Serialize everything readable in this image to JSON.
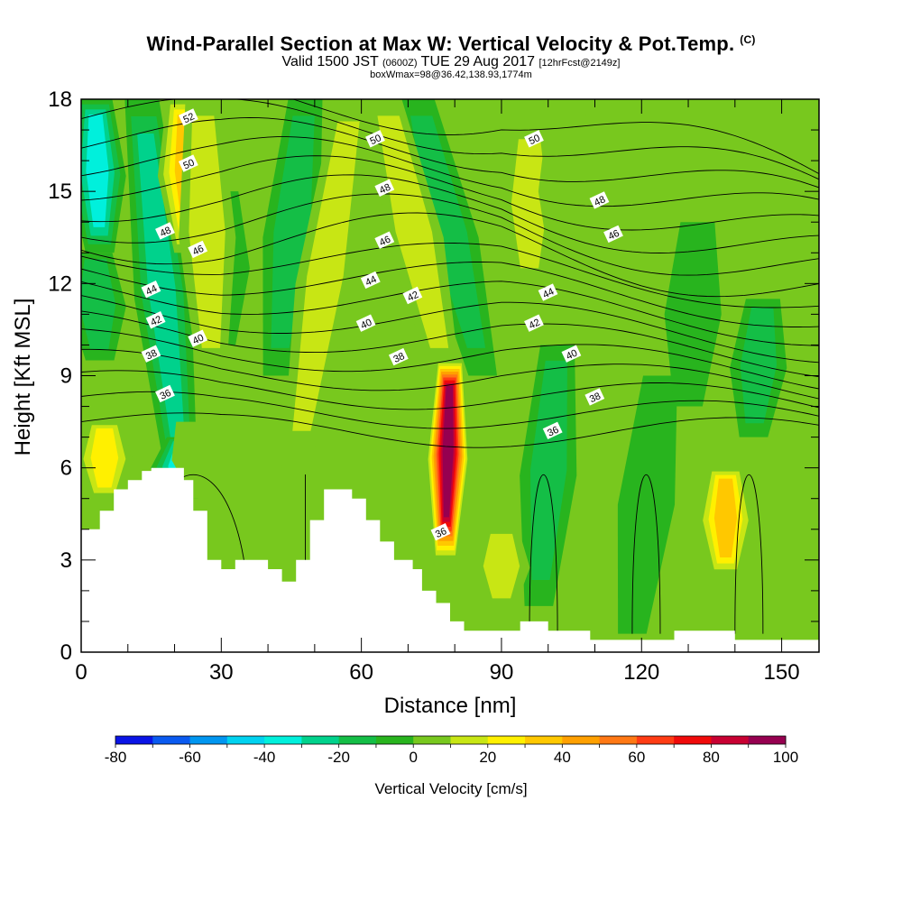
{
  "header": {
    "title": "Wind-Parallel Section at Max W: Vertical Velocity & Pot.Temp.",
    "title_suffix": "(C)",
    "valid_prefix": "Valid 1500 JST",
    "valid_utc": "(0600Z)",
    "valid_date": "TUE 29 Aug 2017",
    "forecast": "[12hrFcst@2149z]",
    "boxwmax": "boxWmax=98@36.42,138.93,1774m"
  },
  "chart_data": {
    "type": "heatmap",
    "title": "Wind-Parallel Section at Max W: Vertical Velocity & Pot.Temp.",
    "xlabel": "Distance [nm]",
    "ylabel": "Height [Kft MSL]",
    "xlim": [
      0,
      158
    ],
    "ylim": [
      0,
      18
    ],
    "x_ticks": [
      0,
      30,
      60,
      90,
      120,
      150
    ],
    "y_ticks": [
      0,
      3,
      6,
      9,
      12,
      15,
      18
    ],
    "grid": false,
    "colorbar": {
      "label": "Vertical Velocity [cm/s]",
      "ticks": [
        -80,
        -60,
        -40,
        -20,
        0,
        20,
        40,
        60,
        80,
        100
      ],
      "levels": [
        -80,
        -70,
        -60,
        -50,
        -40,
        -30,
        -20,
        -10,
        0,
        10,
        20,
        30,
        40,
        50,
        60,
        70,
        80,
        90,
        100
      ],
      "colors": [
        "#0a14e6",
        "#0a5af0",
        "#0096f0",
        "#00d2f0",
        "#00f0dc",
        "#00d28c",
        "#14be46",
        "#28b41e",
        "#78c81e",
        "#c8e614",
        "#fff000",
        "#ffc800",
        "#ffa000",
        "#ff7814",
        "#ff3c14",
        "#f00a0a",
        "#c80032",
        "#960050",
        "#5a0a82"
      ]
    },
    "terrain": {
      "x": [
        0,
        4,
        4,
        7,
        7,
        10,
        10,
        13,
        13,
        15,
        15,
        22,
        22,
        24,
        24,
        27,
        27,
        30,
        30,
        33,
        33,
        40,
        40,
        43,
        43,
        46,
        46,
        49,
        49,
        52,
        52,
        58,
        58,
        61,
        61,
        64,
        64,
        67,
        67,
        71,
        71,
        73,
        73,
        76,
        76,
        79,
        79,
        82,
        82,
        85,
        85,
        94,
        94,
        100,
        100,
        103,
        103,
        109,
        109,
        112,
        112,
        118,
        118,
        124,
        124,
        127,
        127,
        133,
        133,
        140,
        140,
        145,
        145,
        158
      ],
      "height": [
        4.0,
        4.0,
        4.6,
        4.6,
        5.3,
        5.3,
        5.6,
        5.6,
        5.9,
        5.9,
        6.0,
        6.0,
        5.6,
        5.6,
        4.6,
        4.6,
        3.0,
        3.0,
        2.7,
        2.7,
        3.0,
        3.0,
        2.7,
        2.7,
        2.3,
        2.3,
        3.0,
        3.0,
        4.3,
        4.3,
        5.3,
        5.3,
        5.0,
        5.0,
        4.3,
        4.3,
        3.6,
        3.6,
        3.0,
        3.0,
        2.7,
        2.7,
        2.0,
        2.0,
        1.6,
        1.6,
        1.0,
        1.0,
        0.7,
        0.7,
        0.7,
        0.7,
        1.0,
        1.0,
        0.7,
        0.7,
        0.7,
        0.7,
        0.4,
        0.4,
        0.4,
        0.4,
        0.4,
        0.4,
        0.4,
        0.4,
        0.7,
        0.7,
        0.7,
        0.7,
        0.4,
        0.4,
        0.4,
        0.4
      ]
    },
    "updraft_bands": [
      {
        "x_top": 22,
        "x_bottom": 23,
        "y_top": 18,
        "y_bottom": 13,
        "peak": 45
      },
      {
        "x_top": 26,
        "x_bottom": 28,
        "y_top": 18,
        "y_bottom": 9,
        "peak": 20
      },
      {
        "x_top": 58,
        "x_bottom": 46,
        "y_top": 18,
        "y_bottom": 6,
        "peak": 25
      },
      {
        "x_top": 65,
        "x_bottom": 78,
        "y_top": 18,
        "y_bottom": 9,
        "peak": 25
      },
      {
        "x_top": 79,
        "x_bottom": 78,
        "y_top": 9.5,
        "y_bottom": 3.0,
        "peak": 100
      },
      {
        "x_top": 96,
        "x_bottom": 96,
        "y_top": 17,
        "y_bottom": 12,
        "peak": 20
      },
      {
        "x_top": 104,
        "x_bottom": 104,
        "y_top": 18,
        "y_bottom": 12,
        "peak": 15
      },
      {
        "x_top": 138,
        "x_bottom": 138,
        "y_top": 6,
        "y_bottom": 2.5,
        "peak": 40
      },
      {
        "x_top": 90,
        "x_bottom": 90,
        "y_top": 4,
        "y_bottom": 1.5,
        "peak": 20
      },
      {
        "x_top": 24,
        "x_bottom": 27,
        "y_top": 7.5,
        "y_bottom": 5,
        "peak": 15
      },
      {
        "x_top": 5,
        "x_bottom": 5,
        "y_top": 7.5,
        "y_bottom": 5,
        "peak": 35
      }
    ],
    "downdraft_bands": [
      {
        "x_top": 3,
        "x_bottom": 4,
        "y_top": 18,
        "y_bottom": 13,
        "peak": -45
      },
      {
        "x_top": 3,
        "x_bottom": 4,
        "y_top": 13,
        "y_bottom": 9.5,
        "peak": -20
      },
      {
        "x_top": 13,
        "x_bottom": 22,
        "y_top": 18,
        "y_bottom": 5,
        "peak": -30
      },
      {
        "x_top": 22,
        "x_bottom": 20,
        "y_top": 7,
        "y_bottom": 5,
        "peak": -40
      },
      {
        "x_top": 48,
        "x_bottom": 42,
        "y_top": 18,
        "y_bottom": 9,
        "peak": -20
      },
      {
        "x_top": 72,
        "x_bottom": 86,
        "y_top": 18,
        "y_bottom": 9,
        "peak": -25
      },
      {
        "x_top": 102,
        "x_bottom": 98,
        "y_top": 10,
        "y_bottom": 1.5,
        "peak": -20
      },
      {
        "x_top": 124,
        "x_bottom": 118,
        "y_top": 9,
        "y_bottom": 0.6,
        "peak": -15
      },
      {
        "x_top": 132,
        "x_bottom": 130,
        "y_top": 14,
        "y_bottom": 8,
        "peak": -15
      },
      {
        "x_top": 146,
        "x_bottom": 144,
        "y_top": 11.5,
        "y_bottom": 7,
        "peak": -20
      },
      {
        "x_top": 30,
        "x_bottom": 30,
        "y_top": 15,
        "y_bottom": 10,
        "peak": -15
      }
    ],
    "theta_contours": {
      "levels": [
        35,
        36,
        37,
        38,
        39,
        40,
        41,
        42,
        43,
        44,
        45,
        46,
        47,
        48,
        49,
        50,
        51,
        52
      ],
      "labels": [
        {
          "text": "52",
          "x": 23,
          "y": 17.4
        },
        {
          "text": "50",
          "x": 23,
          "y": 15.9
        },
        {
          "text": "50",
          "x": 63,
          "y": 16.7
        },
        {
          "text": "50",
          "x": 97,
          "y": 16.7
        },
        {
          "text": "48",
          "x": 18,
          "y": 13.7
        },
        {
          "text": "48",
          "x": 65,
          "y": 15.1
        },
        {
          "text": "48",
          "x": 111,
          "y": 14.7
        },
        {
          "text": "46",
          "x": 25,
          "y": 13.1
        },
        {
          "text": "46",
          "x": 65,
          "y": 13.4
        },
        {
          "text": "46",
          "x": 114,
          "y": 13.6
        },
        {
          "text": "44",
          "x": 15,
          "y": 11.8
        },
        {
          "text": "44",
          "x": 62,
          "y": 12.1
        },
        {
          "text": "44",
          "x": 100,
          "y": 11.7
        },
        {
          "text": "42",
          "x": 16,
          "y": 10.8
        },
        {
          "text": "42",
          "x": 71,
          "y": 11.6
        },
        {
          "text": "42",
          "x": 97,
          "y": 10.7
        },
        {
          "text": "40",
          "x": 25,
          "y": 10.2
        },
        {
          "text": "40",
          "x": 61,
          "y": 10.7
        },
        {
          "text": "40",
          "x": 105,
          "y": 9.7
        },
        {
          "text": "38",
          "x": 15,
          "y": 9.7
        },
        {
          "text": "38",
          "x": 68,
          "y": 9.6
        },
        {
          "text": "38",
          "x": 110,
          "y": 8.3
        },
        {
          "text": "36",
          "x": 18,
          "y": 8.4
        },
        {
          "text": "36",
          "x": 101,
          "y": 7.2
        },
        {
          "text": "36",
          "x": 77,
          "y": 3.9
        }
      ]
    }
  }
}
